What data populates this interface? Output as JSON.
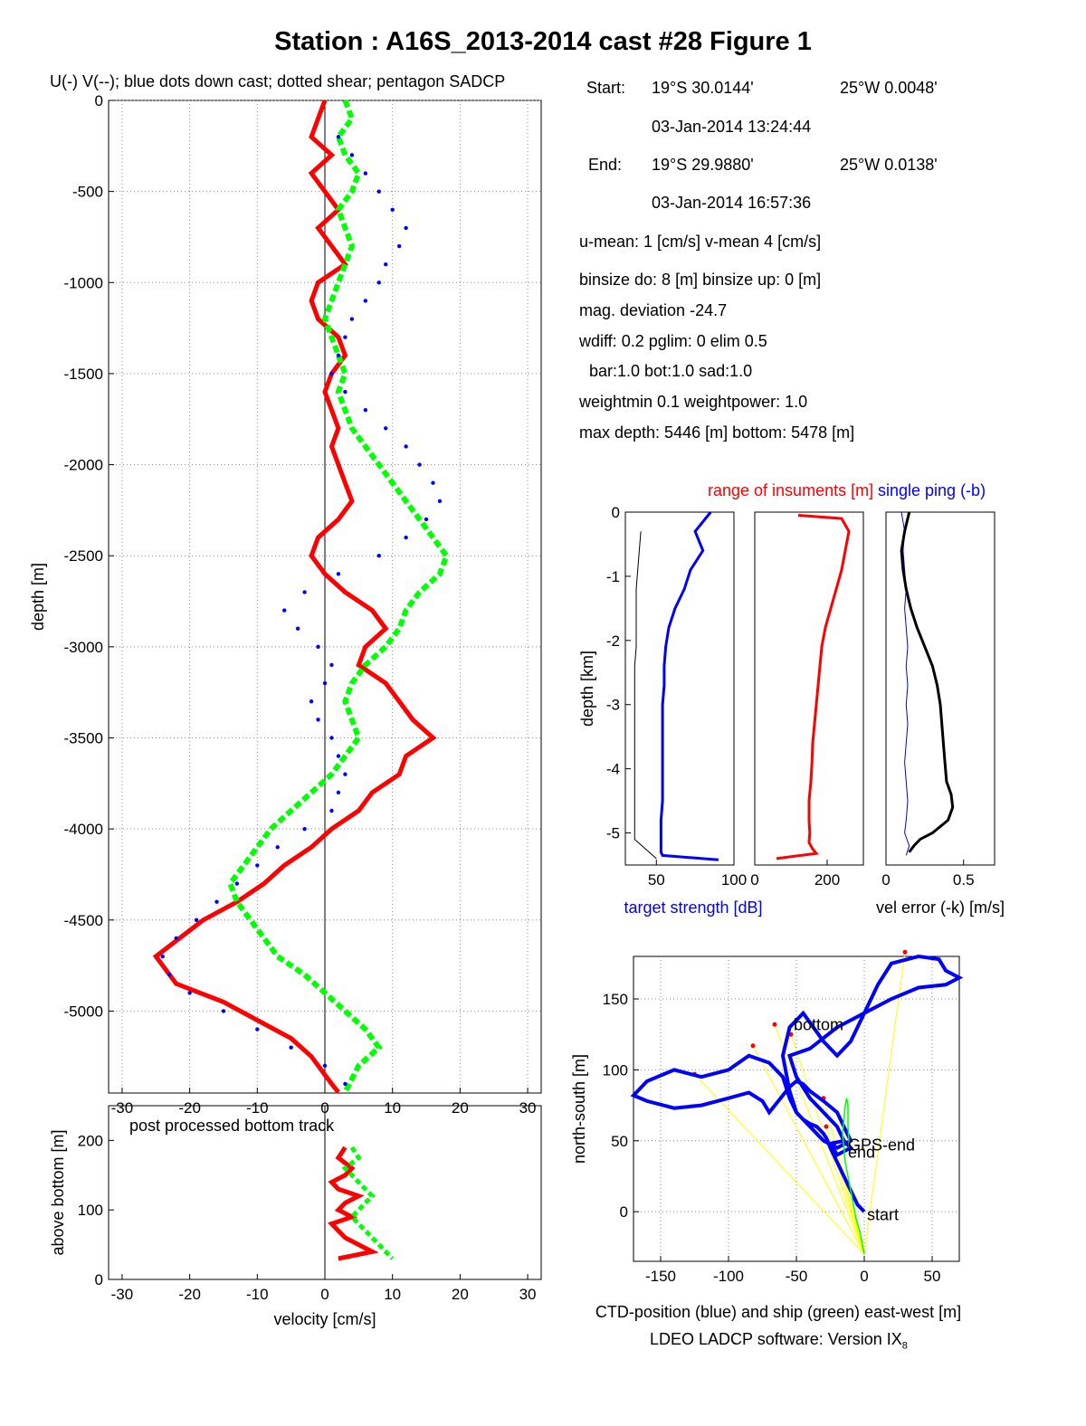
{
  "title": "Station : A16S_2013-2014 cast #28  Figure 1",
  "main_subtitle": "U(-) V(--); blue dots down cast; dotted shear; pentagon SADCP",
  "info": {
    "start_label": "Start:",
    "start_lat": "19°S 30.0144'",
    "start_lon": "25°W  0.0048'",
    "start_time": "03-Jan-2014 13:24:44",
    "end_label": "End:",
    "end_lat": "19°S 29.9880'",
    "end_lon": "25°W  0.0138'",
    "end_time": "03-Jan-2014 16:57:36",
    "umean": "u-mean:   1 [cm/s]    v-mean   4 [cm/s]",
    "binsize": "binsize do:  8 [m]  binsize up:  0 [m]",
    "magdev": "mag. deviation -24.7",
    "wdiff": "wdiff: 0.2  pglim: 0  elim 0.5",
    "bar": "bar:1.0 bot:1.0 sad:1.0",
    "weight": "weightmin 0.1  weightpower: 1.0",
    "maxdepth": "max depth: 5446 [m]   bottom: 5478 [m]"
  },
  "diag_titles": {
    "range": "range of insuments [m]",
    "ping": "single ping (-b)"
  },
  "footer": "LDEO LADCP software: Version IX",
  "footer_sub": "8",
  "colors": {
    "u": "#ff0000",
    "v": "#00ff00",
    "down": "#0000ff",
    "black": "#000000",
    "yellow": "#ffff00"
  },
  "chart_data": [
    {
      "id": "velocity-profile",
      "type": "line",
      "ylabel": "depth [m]",
      "xlim": [
        -32,
        32
      ],
      "ylim": [
        -5450,
        0
      ],
      "xticks": [
        -30,
        -20,
        -10,
        0,
        10,
        20,
        30
      ],
      "yticks": [
        0,
        -500,
        -1000,
        -1500,
        -2000,
        -2500,
        -3000,
        -3500,
        -4000,
        -4500,
        -5000
      ],
      "grid": true,
      "series": [
        {
          "color": "red",
          "style": "thick solid",
          "x": [
            0,
            -1,
            -2,
            1,
            -2,
            0,
            2,
            -1,
            1,
            3,
            -1,
            -2,
            -1,
            2,
            3,
            1,
            0,
            1,
            2,
            1,
            2,
            3,
            4,
            2,
            -1,
            -2,
            0,
            3,
            7,
            9,
            6,
            5,
            9,
            11,
            13,
            16,
            12,
            11,
            7,
            5,
            1,
            -2,
            -6,
            -9,
            -13,
            -18,
            -25,
            -22,
            -15,
            -10,
            -5,
            -2,
            0,
            1,
            2
          ],
          "y": [
            0,
            -100,
            -200,
            -300,
            -400,
            -500,
            -600,
            -700,
            -800,
            -900,
            -1000,
            -1100,
            -1200,
            -1300,
            -1400,
            -1500,
            -1600,
            -1700,
            -1800,
            -1900,
            -2000,
            -2100,
            -2200,
            -2300,
            -2400,
            -2500,
            -2600,
            -2700,
            -2800,
            -2900,
            -3000,
            -3100,
            -3200,
            -3300,
            -3400,
            -3500,
            -3600,
            -3700,
            -3800,
            -3900,
            -4000,
            -4100,
            -4200,
            -4300,
            -4400,
            -4500,
            -4700,
            -4850,
            -4950,
            -5050,
            -5150,
            -5250,
            -5350,
            -5400,
            -5446
          ]
        },
        {
          "color": "green",
          "style": "thick dashed",
          "x": [
            3,
            4,
            2,
            3,
            5,
            4,
            2,
            3,
            4,
            3,
            2,
            1,
            0,
            1,
            2,
            3,
            2,
            3,
            4,
            6,
            8,
            10,
            12,
            14,
            16,
            18,
            17,
            14,
            12,
            11,
            9,
            6,
            4,
            3,
            4,
            5,
            3,
            1,
            -2,
            -5,
            -8,
            -10,
            -12,
            -14,
            -13,
            -11,
            -9,
            -7,
            -3,
            0,
            3,
            6,
            8,
            5,
            3
          ],
          "y": [
            0,
            -100,
            -200,
            -300,
            -400,
            -500,
            -600,
            -700,
            -800,
            -900,
            -1000,
            -1100,
            -1200,
            -1300,
            -1400,
            -1500,
            -1600,
            -1700,
            -1800,
            -1900,
            -2000,
            -2100,
            -2200,
            -2300,
            -2400,
            -2500,
            -2600,
            -2700,
            -2800,
            -2900,
            -3000,
            -3100,
            -3200,
            -3300,
            -3400,
            -3500,
            -3600,
            -3700,
            -3800,
            -3900,
            -4000,
            -4100,
            -4200,
            -4300,
            -4400,
            -4500,
            -4600,
            -4700,
            -4800,
            -4900,
            -5000,
            -5100,
            -5200,
            -5300,
            -5446
          ]
        },
        {
          "color": "blue",
          "style": "dots",
          "x": [
            2,
            4,
            6,
            8,
            10,
            12,
            11,
            9,
            8,
            6,
            4,
            3,
            2,
            1,
            3,
            6,
            9,
            12,
            14,
            16,
            17,
            15,
            12,
            8,
            2,
            -3,
            -6,
            -4,
            -1,
            1,
            0,
            -2,
            -1,
            1,
            2,
            3,
            2,
            1,
            -3,
            -7,
            -10,
            -13,
            -16,
            -19,
            -22,
            -24,
            -23,
            -20,
            -15,
            -10,
            -5,
            0,
            3
          ],
          "y": [
            -200,
            -300,
            -400,
            -500,
            -600,
            -700,
            -800,
            -900,
            -1000,
            -1100,
            -1200,
            -1300,
            -1400,
            -1500,
            -1600,
            -1700,
            -1800,
            -1900,
            -2000,
            -2100,
            -2200,
            -2300,
            -2400,
            -2500,
            -2600,
            -2700,
            -2800,
            -2900,
            -3000,
            -3100,
            -3200,
            -3300,
            -3400,
            -3500,
            -3600,
            -3700,
            -3800,
            -3900,
            -4000,
            -4100,
            -4200,
            -4300,
            -4400,
            -4500,
            -4600,
            -4700,
            -4800,
            -4900,
            -5000,
            -5100,
            -5200,
            -5300,
            -5400
          ]
        }
      ]
    },
    {
      "id": "bottom-track",
      "type": "line",
      "ylabel": "above bottom [m]",
      "xlabel": "velocity [cm/s]",
      "annotation": "post processed bottom track",
      "xlim": [
        -32,
        32
      ],
      "ylim": [
        0,
        250
      ],
      "xticks": [
        -30,
        -20,
        -10,
        0,
        10,
        20,
        30
      ],
      "yticks": [
        0,
        100,
        200
      ],
      "series": [
        {
          "color": "red",
          "x": [
            3,
            2,
            4,
            3,
            1,
            2,
            5,
            3,
            2,
            4,
            1,
            2,
            3,
            5,
            7,
            2
          ],
          "y": [
            190,
            175,
            160,
            150,
            140,
            130,
            120,
            110,
            100,
            90,
            80,
            70,
            60,
            50,
            40,
            30
          ]
        },
        {
          "color": "green",
          "x": [
            4,
            5,
            3,
            4,
            5,
            6,
            7,
            6,
            5,
            4,
            5,
            6,
            7,
            8,
            9,
            10
          ],
          "y": [
            190,
            175,
            160,
            150,
            140,
            130,
            120,
            110,
            100,
            90,
            80,
            70,
            60,
            50,
            40,
            30
          ]
        }
      ]
    },
    {
      "id": "target-strength",
      "type": "line",
      "xlabel": "target strength [dB]",
      "ylabel": "depth [km]",
      "xlim": [
        30,
        100
      ],
      "ylim": [
        -5.5,
        0
      ],
      "xticks": [
        50,
        100
      ],
      "yticks": [
        0,
        -1,
        -2,
        -3,
        -4,
        -5
      ],
      "series": [
        {
          "color": "blue",
          "x": [
            85,
            75,
            80,
            72,
            68,
            62,
            58,
            56,
            55,
            55,
            54,
            54,
            54,
            54,
            54,
            54,
            53,
            53,
            53,
            53,
            54,
            90
          ],
          "y": [
            0,
            -0.3,
            -0.6,
            -0.9,
            -1.2,
            -1.5,
            -1.8,
            -2.1,
            -2.4,
            -2.7,
            -3.0,
            -3.3,
            -3.6,
            -3.9,
            -4.2,
            -4.5,
            -4.8,
            -5.0,
            -5.2,
            -5.3,
            -5.35,
            -5.42
          ]
        },
        {
          "color": "black",
          "x": [
            40,
            39,
            38,
            37,
            37,
            37,
            37,
            36,
            36,
            36,
            36,
            36,
            36,
            36,
            36,
            36,
            36,
            50
          ],
          "y": [
            -0.3,
            -0.6,
            -0.9,
            -1.2,
            -1.5,
            -1.8,
            -2.1,
            -2.4,
            -2.7,
            -3.0,
            -3.3,
            -3.6,
            -3.9,
            -4.2,
            -4.5,
            -4.8,
            -5.1,
            -5.4
          ]
        }
      ]
    },
    {
      "id": "range-instruments",
      "type": "line",
      "xlim": [
        0,
        300
      ],
      "ylim": [
        -5.5,
        0
      ],
      "xticks": [
        0,
        200
      ],
      "series": [
        {
          "color": "red",
          "x": [
            120,
            240,
            260,
            250,
            240,
            225,
            210,
            195,
            185,
            180,
            175,
            170,
            165,
            160,
            158,
            155,
            150,
            150,
            152,
            150,
            160,
            170,
            60
          ],
          "y": [
            -0.05,
            -0.1,
            -0.3,
            -0.6,
            -0.9,
            -1.2,
            -1.5,
            -1.8,
            -2.1,
            -2.4,
            -2.7,
            -3.0,
            -3.3,
            -3.6,
            -3.9,
            -4.2,
            -4.5,
            -4.8,
            -5.0,
            -5.15,
            -5.25,
            -5.32,
            -5.4
          ]
        }
      ]
    },
    {
      "id": "vel-error",
      "type": "line",
      "xlabel": "vel error (-k) [m/s]",
      "xlim": [
        0,
        0.7
      ],
      "ylim": [
        -5.5,
        0
      ],
      "xticks": [
        0,
        0.5
      ],
      "series": [
        {
          "color": "black",
          "x": [
            0.15,
            0.12,
            0.1,
            0.11,
            0.13,
            0.16,
            0.2,
            0.25,
            0.3,
            0.33,
            0.35,
            0.36,
            0.37,
            0.38,
            0.39,
            0.42,
            0.43,
            0.4,
            0.3,
            0.22,
            0.18,
            0.15
          ],
          "y": [
            0,
            -0.3,
            -0.6,
            -0.9,
            -1.2,
            -1.5,
            -1.8,
            -2.1,
            -2.4,
            -2.7,
            -3.0,
            -3.3,
            -3.6,
            -3.9,
            -4.2,
            -4.4,
            -4.6,
            -4.8,
            -5.0,
            -5.1,
            -5.2,
            -5.3
          ]
        },
        {
          "color": "blue",
          "x": [
            0.1,
            0.12,
            0.11,
            0.12,
            0.13,
            0.12,
            0.13,
            0.14,
            0.13,
            0.14,
            0.13,
            0.14,
            0.13,
            0.12,
            0.13,
            0.14,
            0.13,
            0.12,
            0.15,
            0.13
          ],
          "y": [
            0,
            -0.3,
            -0.6,
            -0.9,
            -1.2,
            -1.5,
            -1.8,
            -2.1,
            -2.4,
            -2.7,
            -3.0,
            -3.3,
            -3.6,
            -3.9,
            -4.2,
            -4.5,
            -4.8,
            -5.0,
            -5.2,
            -5.35
          ]
        }
      ]
    },
    {
      "id": "position",
      "type": "line",
      "xlabel": "CTD-position (blue) and ship (green) east-west [m]",
      "ylabel": "north-south [m]",
      "xlim": [
        -170,
        70
      ],
      "ylim": [
        -35,
        180
      ],
      "xticks": [
        -150,
        -100,
        -50,
        0,
        50
      ],
      "yticks": [
        0,
        50,
        100,
        150
      ],
      "grid": true,
      "annotations": [
        {
          "text": "bottom",
          "x": -52,
          "y": 128
        },
        {
          "text": "GPS-end",
          "x": -12,
          "y": 43
        },
        {
          "text": "end",
          "x": -12,
          "y": 38
        },
        {
          "text": "start",
          "x": 2,
          "y": -6
        }
      ],
      "series": [
        {
          "color": "blue",
          "x": [
            0,
            -5,
            -10,
            -15,
            -20,
            -25,
            -28,
            -30,
            -35,
            -40,
            -45,
            -50,
            -55,
            -60,
            -70,
            -85,
            -100,
            -120,
            -140,
            -160,
            -170,
            -160,
            -140,
            -120,
            -100,
            -85,
            -75,
            -70,
            -65,
            -60,
            -55,
            -50,
            -45,
            -40,
            -30,
            -20,
            -15,
            -10,
            -20,
            -30,
            -40,
            -50,
            -55,
            -60,
            -55,
            -45,
            -30,
            -20,
            -10,
            0,
            10,
            20,
            40,
            55,
            60,
            70,
            60,
            40,
            20,
            0,
            -20,
            -40,
            -55,
            -50,
            -40,
            -30,
            -20,
            -15,
            -10,
            -20,
            -25,
            -15
          ],
          "y": [
            0,
            5,
            15,
            25,
            35,
            45,
            52,
            55,
            60,
            62,
            65,
            70,
            80,
            95,
            105,
            110,
            100,
            95,
            100,
            92,
            82,
            78,
            73,
            75,
            80,
            84,
            78,
            70,
            76,
            82,
            88,
            92,
            90,
            85,
            78,
            70,
            60,
            50,
            45,
            50,
            60,
            70,
            85,
            110,
            130,
            140,
            120,
            110,
            120,
            140,
            160,
            175,
            180,
            178,
            170,
            165,
            160,
            158,
            150,
            140,
            130,
            115,
            110,
            95,
            80,
            70,
            60,
            50,
            45,
            40,
            48,
            50
          ]
        },
        {
          "color": "green",
          "x": [
            0,
            -3,
            -6,
            -8,
            -10,
            -12,
            -14,
            -15,
            -16,
            -15,
            -14,
            -13,
            -12,
            -12,
            -11
          ],
          "y": [
            -30,
            -15,
            -5,
            5,
            15,
            25,
            35,
            45,
            55,
            65,
            75,
            80,
            75,
            60,
            45
          ]
        },
        {
          "color": "yellow",
          "x": [
            0,
            -28,
            0,
            -54,
            0,
            -82,
            0,
            -125,
            0,
            -66,
            0,
            -30,
            0,
            30,
            0,
            -22
          ],
          "y": [
            -30,
            60,
            -30,
            125,
            -30,
            117,
            -30,
            97,
            -30,
            132,
            -30,
            80,
            -30,
            183,
            -30,
            48
          ]
        }
      ]
    }
  ]
}
